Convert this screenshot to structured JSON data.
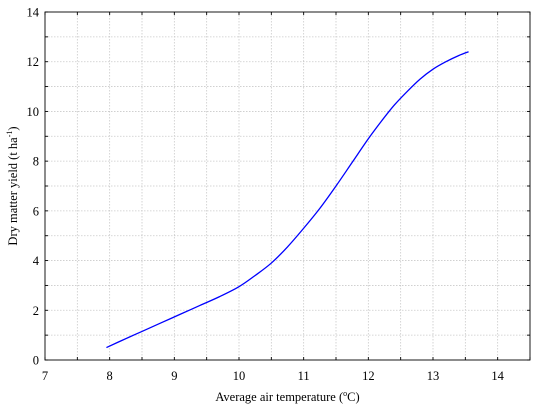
{
  "chart_data": {
    "type": "line",
    "title": "",
    "xlabel": {
      "prefix": "Average air temperature (",
      "sup": "o",
      "suffix": "C)"
    },
    "ylabel": {
      "prefix": "Dry matter yield (t ha",
      "sup": "-1",
      "suffix": ")"
    },
    "xlim": [
      7,
      14.5
    ],
    "ylim": [
      0,
      14
    ],
    "x_ticks": [
      "7",
      "8",
      "9",
      "10",
      "11",
      "12",
      "13",
      "14"
    ],
    "y_ticks": [
      "0",
      "2",
      "4",
      "6",
      "8",
      "10",
      "12",
      "14"
    ],
    "grid": true,
    "series": [
      {
        "color": "#0000ff",
        "x": [
          7.95,
          8.2,
          8.5,
          8.8,
          9.1,
          9.4,
          9.7,
          10.0,
          10.25,
          10.5,
          10.75,
          11.0,
          11.25,
          11.5,
          11.75,
          12.0,
          12.2,
          12.4,
          12.6,
          12.8,
          13.0,
          13.2,
          13.4,
          13.55
        ],
        "y": [
          0.5,
          0.8,
          1.15,
          1.5,
          1.85,
          2.2,
          2.55,
          2.95,
          3.4,
          3.9,
          4.55,
          5.3,
          6.1,
          7.0,
          7.95,
          8.9,
          9.6,
          10.25,
          10.8,
          11.3,
          11.7,
          12.0,
          12.25,
          12.4
        ]
      }
    ]
  }
}
